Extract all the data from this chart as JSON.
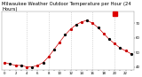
{
  "title": "Milwaukee Weather Outdoor Temperature per Hour (24 Hours)",
  "hours": [
    0,
    1,
    2,
    3,
    4,
    5,
    6,
    7,
    8,
    9,
    10,
    11,
    12,
    13,
    14,
    15,
    16,
    17,
    18,
    19,
    20,
    21,
    22,
    23
  ],
  "temps": [
    43,
    42,
    41,
    41,
    40,
    40,
    41,
    43,
    47,
    52,
    57,
    62,
    66,
    69,
    71,
    72,
    70,
    67,
    63,
    59,
    56,
    53,
    51,
    49
  ],
  "current_hour": 20,
  "ylim": [
    38,
    78
  ],
  "yticks": [
    40,
    50,
    60,
    70
  ],
  "ytick_labels": [
    "40",
    "50",
    "60",
    "70"
  ],
  "line_color": "#cc0000",
  "dot_color": "#cc0000",
  "black_dot_color": "#000000",
  "highlight_color": "#dd0000",
  "bg_color": "#ffffff",
  "plot_bg": "#f8f8f8",
  "title_fontsize": 3.8,
  "tick_fontsize": 2.8,
  "grid_color": "#bbbbbb",
  "grid_positions": [
    4,
    8,
    12,
    16,
    20
  ],
  "xtick_step": 2
}
